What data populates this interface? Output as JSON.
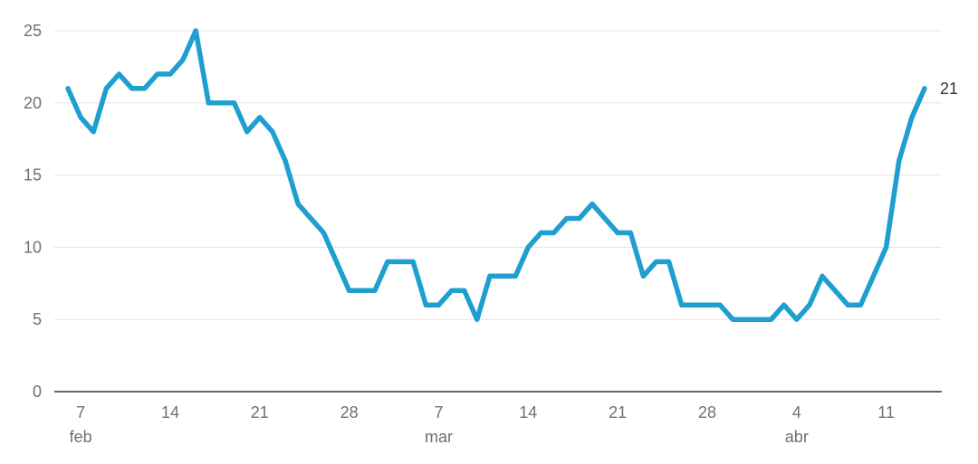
{
  "chart_data": {
    "type": "line",
    "title": "",
    "xlabel": "",
    "ylabel": "",
    "ylim": [
      0,
      25
    ],
    "y_ticks": [
      "0",
      "5",
      "10",
      "15",
      "20",
      "25"
    ],
    "grid": true,
    "legend": "none",
    "colors": {
      "line": "#1f9fcf",
      "grid": "#e3e3e3",
      "axis": "#333333",
      "tick_text": "#707070"
    },
    "x_ticks": [
      {
        "date": "2021-02-07",
        "label": "7",
        "month": "feb"
      },
      {
        "date": "2021-02-14",
        "label": "14"
      },
      {
        "date": "2021-02-21",
        "label": "21"
      },
      {
        "date": "2021-02-28",
        "label": "28"
      },
      {
        "date": "2021-03-07",
        "label": "7",
        "month": "mar"
      },
      {
        "date": "2021-03-14",
        "label": "14"
      },
      {
        "date": "2021-03-21",
        "label": "21"
      },
      {
        "date": "2021-03-28",
        "label": "28"
      },
      {
        "date": "2021-04-04",
        "label": "4",
        "month": "abr"
      },
      {
        "date": "2021-04-11",
        "label": "11"
      }
    ],
    "end_label": "21",
    "series": [
      {
        "x": [
          "2021-02-06",
          "2021-02-07",
          "2021-02-08",
          "2021-02-09",
          "2021-02-10",
          "2021-02-11",
          "2021-02-12",
          "2021-02-13",
          "2021-02-14",
          "2021-02-15",
          "2021-02-16",
          "2021-02-17",
          "2021-02-18",
          "2021-02-19",
          "2021-02-20",
          "2021-02-21",
          "2021-02-22",
          "2021-02-23",
          "2021-02-24",
          "2021-02-25",
          "2021-02-26",
          "2021-02-27",
          "2021-02-28",
          "2021-03-01",
          "2021-03-02",
          "2021-03-03",
          "2021-03-04",
          "2021-03-05",
          "2021-03-06",
          "2021-03-07",
          "2021-03-08",
          "2021-03-09",
          "2021-03-10",
          "2021-03-11",
          "2021-03-12",
          "2021-03-13",
          "2021-03-14",
          "2021-03-15",
          "2021-03-16",
          "2021-03-17",
          "2021-03-18",
          "2021-03-19",
          "2021-03-20",
          "2021-03-21",
          "2021-03-22",
          "2021-03-23",
          "2021-03-24",
          "2021-03-25",
          "2021-03-26",
          "2021-03-27",
          "2021-03-28",
          "2021-03-29",
          "2021-03-30",
          "2021-03-31",
          "2021-04-01",
          "2021-04-02",
          "2021-04-03",
          "2021-04-04",
          "2021-04-05",
          "2021-04-06",
          "2021-04-07",
          "2021-04-08",
          "2021-04-09",
          "2021-04-10",
          "2021-04-11",
          "2021-04-12",
          "2021-04-13",
          "2021-04-14"
        ],
        "values": [
          21,
          19,
          18,
          21,
          22,
          21,
          21,
          22,
          22,
          23,
          25,
          20,
          20,
          20,
          18,
          19,
          18,
          16,
          13,
          12,
          11,
          9,
          7,
          7,
          7,
          9,
          9,
          9,
          6,
          6,
          7,
          7,
          5,
          8,
          8,
          8,
          10,
          11,
          11,
          12,
          12,
          13,
          12,
          11,
          11,
          8,
          9,
          9,
          6,
          6,
          6,
          6,
          5,
          5,
          5,
          5,
          6,
          5,
          6,
          8,
          7,
          6,
          6,
          8,
          10,
          16,
          19,
          21
        ]
      }
    ]
  }
}
